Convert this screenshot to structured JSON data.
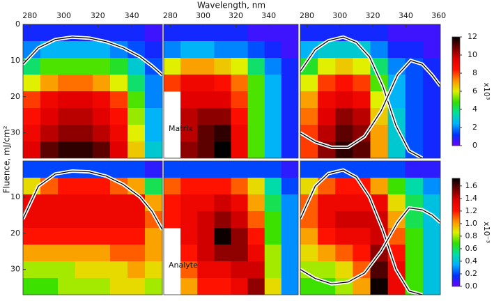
{
  "chart_data": [
    {
      "type": "heatmap",
      "xlabel": "Wavelength, nm",
      "ylabel": "Fluence, mJ/cm²",
      "xlim": [
        276,
        358
      ],
      "xticks": [
        280,
        300,
        320,
        340
      ],
      "ylim": [
        0,
        37
      ],
      "yticks": [
        0,
        10,
        20,
        30
      ],
      "y_inverted": true,
      "zlim": [
        0,
        12
      ],
      "colormap": [
        "#6a00ff",
        "#0030ff",
        "#00b0ff",
        "#00e0a0",
        "#30e000",
        "#e0f000",
        "#ff9000",
        "#ff1000",
        "#e00000",
        "#700000",
        "#000000"
      ],
      "z": [
        [
          1,
          1,
          1,
          1,
          1,
          1,
          1,
          0.5
        ],
        [
          2,
          2.5,
          2.5,
          2.5,
          2.5,
          2,
          1.5,
          1
        ],
        [
          4,
          5,
          5,
          5,
          5,
          4.5,
          3,
          1.5
        ],
        [
          6,
          7,
          7.5,
          7.5,
          7,
          6,
          4,
          2
        ],
        [
          8,
          9,
          9.5,
          9.5,
          9,
          8,
          5,
          2
        ],
        [
          8.5,
          9.5,
          10,
          10,
          9.5,
          8.5,
          5.5,
          2.5
        ],
        [
          9,
          10,
          10.5,
          10.5,
          10,
          9,
          6,
          2.5
        ],
        [
          9.5,
          11,
          11.5,
          11.5,
          11,
          9.5,
          6.5,
          3
        ]
      ],
      "curves": [
        {
          "x": [
            276,
            285,
            295,
            305,
            315,
            325,
            335,
            345,
            352,
            358
          ],
          "y": [
            11,
            6.5,
            4.2,
            3.5,
            3.8,
            4.8,
            6.5,
            9,
            11.5,
            14
          ]
        }
      ]
    },
    {
      "type": "heatmap",
      "xlim": [
        276,
        358
      ],
      "xticks": [
        280,
        300,
        320,
        340
      ],
      "ylim": [
        0,
        37
      ],
      "y_inverted": true,
      "zlim": [
        0,
        12
      ],
      "annotation": "Matrix",
      "z": [
        [
          1,
          1,
          1,
          1,
          1,
          0.5,
          0.5,
          0.5
        ],
        [
          2,
          2.5,
          2.5,
          2,
          2,
          1.5,
          1,
          0.5
        ],
        [
          6,
          7,
          7,
          6.5,
          6,
          4,
          2,
          1
        ],
        [
          8,
          9,
          9,
          8.5,
          7.5,
          5,
          2.5,
          1
        ],
        [
          null,
          9.5,
          9.5,
          9.5,
          8,
          5,
          2.5,
          1
        ],
        [
          null,
          10,
          10.5,
          10.5,
          8.5,
          5,
          2.5,
          1
        ],
        [
          null,
          10,
          11,
          11.5,
          9,
          5,
          2.5,
          1
        ],
        [
          null,
          10.5,
          11,
          12,
          9,
          5,
          2.5,
          1
        ]
      ]
    },
    {
      "type": "heatmap",
      "xlim": [
        276,
        361
      ],
      "xticks": [
        280,
        300,
        320,
        340,
        360
      ],
      "ylim": [
        0,
        37
      ],
      "y_inverted": true,
      "zlim": [
        0,
        12
      ],
      "z": [
        [
          1,
          1,
          1,
          1,
          1,
          0.5,
          0.5,
          0.5
        ],
        [
          2.5,
          3,
          3,
          3,
          2,
          1,
          1,
          0.5
        ],
        [
          4.5,
          6,
          6.5,
          6,
          4,
          2,
          1.5,
          1
        ],
        [
          6,
          8,
          8.5,
          8,
          5,
          2.5,
          1.5,
          1
        ],
        [
          7,
          9,
          9.5,
          9,
          6,
          2.5,
          1.5,
          1
        ],
        [
          7.5,
          9.5,
          10.5,
          10,
          6.5,
          3,
          1.5,
          1
        ],
        [
          8,
          10,
          11,
          10.5,
          7,
          3,
          1.5,
          1
        ],
        [
          8,
          10.5,
          11.5,
          11,
          7,
          3,
          1.5,
          1
        ]
      ],
      "curves": [
        {
          "x": [
            276,
            285,
            293,
            302,
            310,
            318,
            326,
            334,
            342,
            350
          ],
          "y": [
            13,
            7,
            4.5,
            3.5,
            5,
            9,
            17,
            28,
            35,
            37
          ]
        },
        {
          "x": [
            276,
            285,
            295,
            305,
            315,
            325,
            335,
            343,
            350,
            356,
            361
          ],
          "y": [
            30,
            32.5,
            34,
            34,
            31,
            24,
            14,
            10,
            11,
            14,
            17
          ]
        }
      ],
      "colorbar": {
        "label": "x10³",
        "ticks": [
          0,
          2,
          4,
          6,
          8,
          10,
          12
        ]
      }
    },
    {
      "type": "heatmap",
      "xlim": [
        276,
        358
      ],
      "ylim": [
        0,
        37
      ],
      "yticks": [
        10,
        20,
        30
      ],
      "y_inverted": true,
      "zlim": [
        0,
        1.72
      ],
      "z": [
        [
          0.2,
          0.2,
          0.2,
          0.2,
          0.2,
          0.2,
          0.2,
          0.1
        ],
        [
          0.9,
          1.1,
          1.2,
          1.2,
          1.2,
          1.1,
          1,
          0.6
        ],
        [
          1.3,
          1.3,
          1.3,
          1.3,
          1.3,
          1.3,
          1.3,
          1
        ],
        [
          1.3,
          1.3,
          1.3,
          1.3,
          1.3,
          1.3,
          1.3,
          1.1
        ],
        [
          1.2,
          1.2,
          1.2,
          1.2,
          1.2,
          1.2,
          1.2,
          1
        ],
        [
          1,
          1,
          1,
          1,
          1,
          1.1,
          1.1,
          1
        ],
        [
          0.8,
          0.8,
          0.8,
          0.9,
          0.9,
          0.9,
          1,
          0.9
        ],
        [
          0.7,
          0.7,
          0.8,
          0.8,
          0.8,
          0.9,
          0.9,
          0.8
        ]
      ],
      "curves": [
        {
          "x": [
            276,
            285,
            295,
            305,
            315,
            325,
            335,
            345,
            352,
            358
          ],
          "y": [
            16,
            7,
            3.6,
            2.8,
            3,
            4.2,
            6.5,
            10,
            14,
            19
          ]
        }
      ]
    },
    {
      "type": "heatmap",
      "xlim": [
        276,
        358
      ],
      "ylim": [
        0,
        37
      ],
      "y_inverted": true,
      "zlim": [
        0,
        1.72
      ],
      "annotation": "Analyte",
      "z": [
        [
          0.2,
          0.2,
          0.2,
          0.2,
          0.2,
          0.2,
          0.2,
          0.1
        ],
        [
          1.1,
          1.2,
          1.2,
          1.2,
          1.1,
          0.9,
          0.5,
          0.2
        ],
        [
          1.2,
          1.3,
          1.3,
          1.4,
          1.3,
          1,
          0.6,
          0.3
        ],
        [
          1.2,
          1.3,
          1.4,
          1.5,
          1.4,
          1.1,
          0.7,
          0.3
        ],
        [
          null,
          1.3,
          1.4,
          1.7,
          1.5,
          1.2,
          0.7,
          0.3
        ],
        [
          null,
          1.2,
          1.4,
          1.5,
          1.5,
          1.3,
          0.8,
          0.3
        ],
        [
          null,
          1.1,
          1.3,
          1.3,
          1.4,
          1.4,
          0.8,
          0.3
        ],
        [
          null,
          1,
          1.2,
          1.2,
          1.3,
          1.5,
          0.9,
          0.3
        ]
      ]
    },
    {
      "type": "heatmap",
      "xlim": [
        276,
        361
      ],
      "ylim": [
        0,
        37
      ],
      "y_inverted": true,
      "zlim": [
        0,
        1.72
      ],
      "z": [
        [
          0.2,
          0.2,
          0.2,
          0.2,
          0.2,
          0.2,
          0.1,
          0.1
        ],
        [
          0.9,
          1.1,
          1.2,
          1.2,
          1,
          0.7,
          0.5,
          0.3
        ],
        [
          1.1,
          1.3,
          1.3,
          1.3,
          1.3,
          0.9,
          0.6,
          0.4
        ],
        [
          1.1,
          1.3,
          1.4,
          1.4,
          1.4,
          1,
          0.6,
          0.4
        ],
        [
          1,
          1.2,
          1.3,
          1.3,
          1.4,
          1.1,
          0.7,
          0.4
        ],
        [
          0.9,
          1,
          1.1,
          1.2,
          1.5,
          1.2,
          0.7,
          0.4
        ],
        [
          0.8,
          0.8,
          0.9,
          1.1,
          1.6,
          1.3,
          0.7,
          0.4
        ],
        [
          0.7,
          0.7,
          0.8,
          1,
          1.7,
          1.3,
          0.7,
          0.4
        ]
      ],
      "curves": [
        {
          "x": [
            276,
            285,
            293,
            302,
            310,
            318,
            326,
            334,
            342,
            350
          ],
          "y": [
            16,
            7,
            3.5,
            2.5,
            4.5,
            10,
            19,
            30,
            36,
            37
          ]
        },
        {
          "x": [
            276,
            285,
            295,
            305,
            315,
            325,
            335,
            342,
            350,
            356,
            361
          ],
          "y": [
            30,
            32.5,
            34,
            33.5,
            31,
            25,
            17,
            13,
            13.5,
            15,
            17
          ]
        }
      ],
      "colorbar": {
        "label": "x10⁻³",
        "ticks": [
          {
            "value": 0,
            "label": "0.0"
          },
          0.2,
          0.4,
          0.6,
          0.8,
          {
            "value": 1,
            "label": "1.0"
          },
          1.2,
          1.4,
          1.6
        ]
      }
    }
  ]
}
